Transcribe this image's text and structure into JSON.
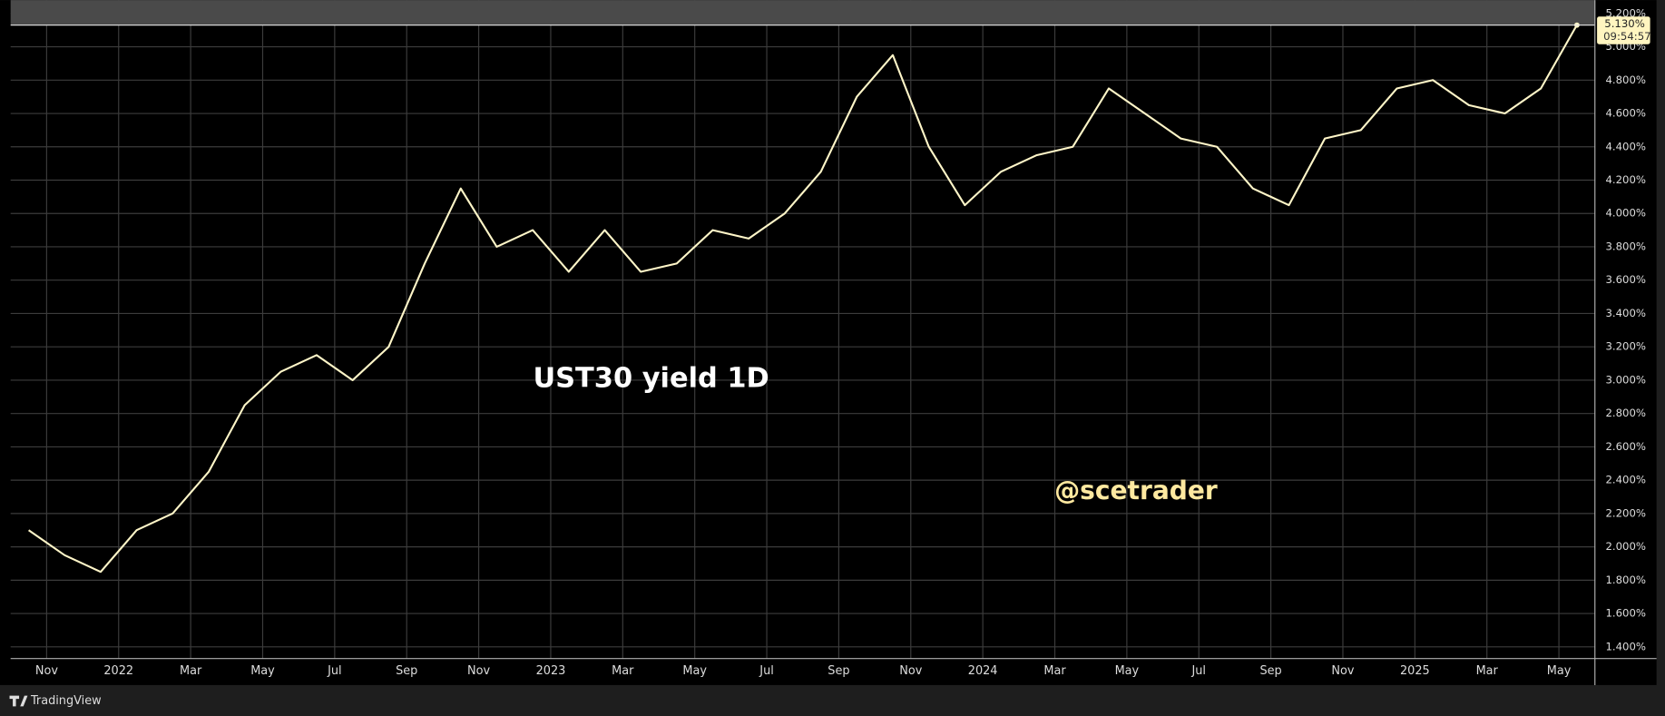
{
  "chart_data": {
    "type": "line",
    "title": "UST30 yield  1D",
    "watermark": "@scetrader",
    "brand": "TradingView",
    "color": "#fff6c8",
    "grid": true,
    "x": [
      "2021-10",
      "2021-11",
      "2021-12",
      "2022-01",
      "2022-02",
      "2022-03",
      "2022-04",
      "2022-05",
      "2022-06",
      "2022-07",
      "2022-08",
      "2022-09",
      "2022-10",
      "2022-11",
      "2022-12",
      "2023-01",
      "2023-02",
      "2023-03",
      "2023-04",
      "2023-05",
      "2023-06",
      "2023-07",
      "2023-08",
      "2023-09",
      "2023-10",
      "2023-11",
      "2023-12",
      "2024-01",
      "2024-02",
      "2024-03",
      "2024-04",
      "2024-05",
      "2024-06",
      "2024-07",
      "2024-08",
      "2024-09",
      "2024-10",
      "2024-11",
      "2024-12",
      "2025-01",
      "2025-02",
      "2025-03",
      "2025-04",
      "2025-05"
    ],
    "values": [
      2.1,
      1.95,
      1.85,
      2.1,
      2.2,
      2.45,
      2.85,
      3.05,
      3.15,
      3.0,
      3.2,
      3.7,
      4.15,
      3.8,
      3.9,
      3.65,
      3.9,
      3.65,
      3.7,
      3.9,
      3.85,
      4.0,
      4.25,
      4.7,
      4.95,
      4.4,
      4.05,
      4.25,
      4.35,
      4.4,
      4.75,
      4.6,
      4.45,
      4.4,
      4.15,
      4.05,
      4.45,
      4.5,
      4.75,
      4.8,
      4.65,
      4.6,
      4.75,
      5.13
    ],
    "xlim": [
      "2021-10",
      "2025-06"
    ],
    "xticks": [
      {
        "value": "2021-11",
        "label": "Nov"
      },
      {
        "value": "2022-01",
        "label": "2022"
      },
      {
        "value": "2022-03",
        "label": "Mar"
      },
      {
        "value": "2022-05",
        "label": "May"
      },
      {
        "value": "2022-07",
        "label": "Jul"
      },
      {
        "value": "2022-09",
        "label": "Sep"
      },
      {
        "value": "2022-11",
        "label": "Nov"
      },
      {
        "value": "2023-01",
        "label": "2023"
      },
      {
        "value": "2023-03",
        "label": "Mar"
      },
      {
        "value": "2023-05",
        "label": "May"
      },
      {
        "value": "2023-07",
        "label": "Jul"
      },
      {
        "value": "2023-09",
        "label": "Sep"
      },
      {
        "value": "2023-11",
        "label": "Nov"
      },
      {
        "value": "2024-01",
        "label": "2024"
      },
      {
        "value": "2024-03",
        "label": "Mar"
      },
      {
        "value": "2024-05",
        "label": "May"
      },
      {
        "value": "2024-07",
        "label": "Jul"
      },
      {
        "value": "2024-09",
        "label": "Sep"
      },
      {
        "value": "2024-11",
        "label": "Nov"
      },
      {
        "value": "2025-01",
        "label": "2025"
      },
      {
        "value": "2025-03",
        "label": "Mar"
      },
      {
        "value": "2025-05",
        "label": "May"
      }
    ],
    "ylim": [
      1.33,
      5.28
    ],
    "yticks": [
      {
        "value": 1.4,
        "label": "1.400%"
      },
      {
        "value": 1.6,
        "label": "1.600%"
      },
      {
        "value": 1.8,
        "label": "1.800%"
      },
      {
        "value": 2.0,
        "label": "2.000%"
      },
      {
        "value": 2.2,
        "label": "2.200%"
      },
      {
        "value": 2.4,
        "label": "2.400%"
      },
      {
        "value": 2.6,
        "label": "2.600%"
      },
      {
        "value": 2.8,
        "label": "2.800%"
      },
      {
        "value": 3.0,
        "label": "3.000%"
      },
      {
        "value": 3.2,
        "label": "3.200%"
      },
      {
        "value": 3.4,
        "label": "3.400%"
      },
      {
        "value": 3.6,
        "label": "3.600%"
      },
      {
        "value": 3.8,
        "label": "3.800%"
      },
      {
        "value": 4.0,
        "label": "4.000%"
      },
      {
        "value": 4.2,
        "label": "4.200%"
      },
      {
        "value": 4.4,
        "label": "4.400%"
      },
      {
        "value": 4.6,
        "label": "4.600%"
      },
      {
        "value": 4.8,
        "label": "4.800%"
      },
      {
        "value": 5.0,
        "label": "5.000%"
      },
      {
        "value": 5.2,
        "label": "5.200%"
      }
    ],
    "price_line": {
      "value": 5.13,
      "label": "5.130%"
    },
    "countdown": "09:54:57"
  }
}
